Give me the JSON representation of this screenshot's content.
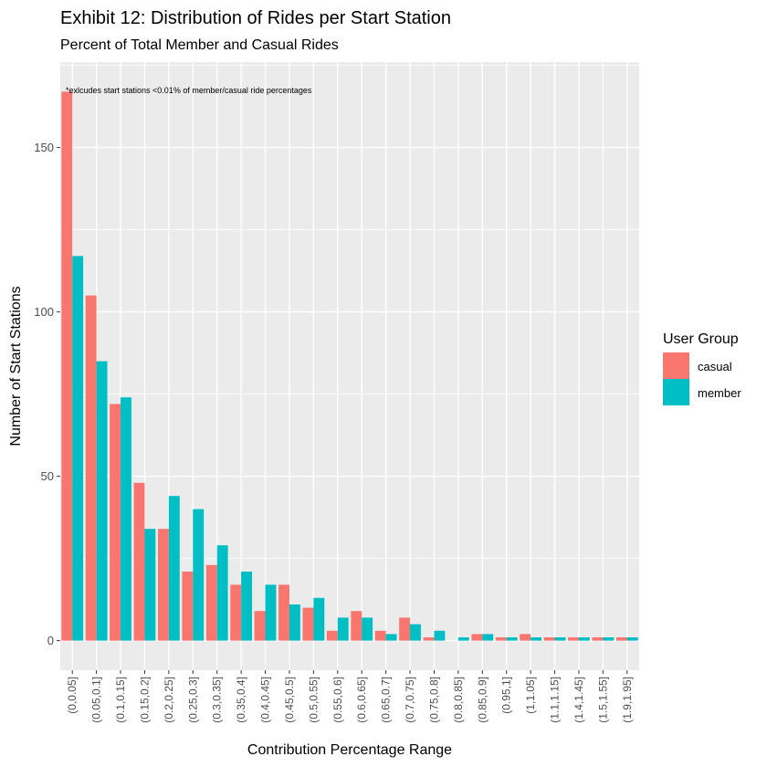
{
  "chart_data": {
    "type": "bar",
    "title": "Exhibit 12: Distribution of Rides per Start Station",
    "subtitle": "Percent of Total Member and Casual Rides",
    "annotation": "*exlcudes start stations <0.01% of member/casual ride percentages",
    "xlabel": "Contribution Percentage Range",
    "ylabel": "Number of Start Stations",
    "ylim": [
      -9,
      176
    ],
    "yticks": [
      0,
      50,
      100,
      150
    ],
    "grid": true,
    "legend": {
      "title": "User Group",
      "placement": "right",
      "entries": [
        "casual",
        "member"
      ]
    },
    "colors": {
      "casual": "#F8766D",
      "member": "#00BFC4",
      "panel": "#EBEBEB",
      "grid": "#FFFFFF"
    },
    "categories": [
      "(0,0.05]",
      "(0.05,0.1]",
      "(0.1,0.15]",
      "(0.15,0.2]",
      "(0.2,0.25]",
      "(0.25,0.3]",
      "(0.3,0.35]",
      "(0.35,0.4]",
      "(0.4,0.45]",
      "(0.45,0.5]",
      "(0.5,0.55]",
      "(0.55,0.6]",
      "(0.6,0.65]",
      "(0.65,0.7]",
      "(0.7,0.75]",
      "(0.75,0.8]",
      "(0.8,0.85]",
      "(0.85,0.9]",
      "(0.95,1]",
      "(1,1.05]",
      "(1.1,1.15]",
      "(1.4,1.45]",
      "(1.5,1.55]",
      "(1.9,1.95]"
    ],
    "series": [
      {
        "name": "casual",
        "values": [
          167,
          105,
          72,
          48,
          34,
          21,
          23,
          17,
          9,
          17,
          10,
          3,
          9,
          3,
          7,
          1,
          0,
          2,
          1,
          2,
          1,
          1,
          1,
          1
        ]
      },
      {
        "name": "member",
        "values": [
          117,
          85,
          74,
          34,
          44,
          40,
          29,
          21,
          17,
          11,
          13,
          7,
          7,
          2,
          5,
          3,
          1,
          2,
          1,
          1,
          1,
          1,
          1,
          1
        ]
      }
    ]
  }
}
